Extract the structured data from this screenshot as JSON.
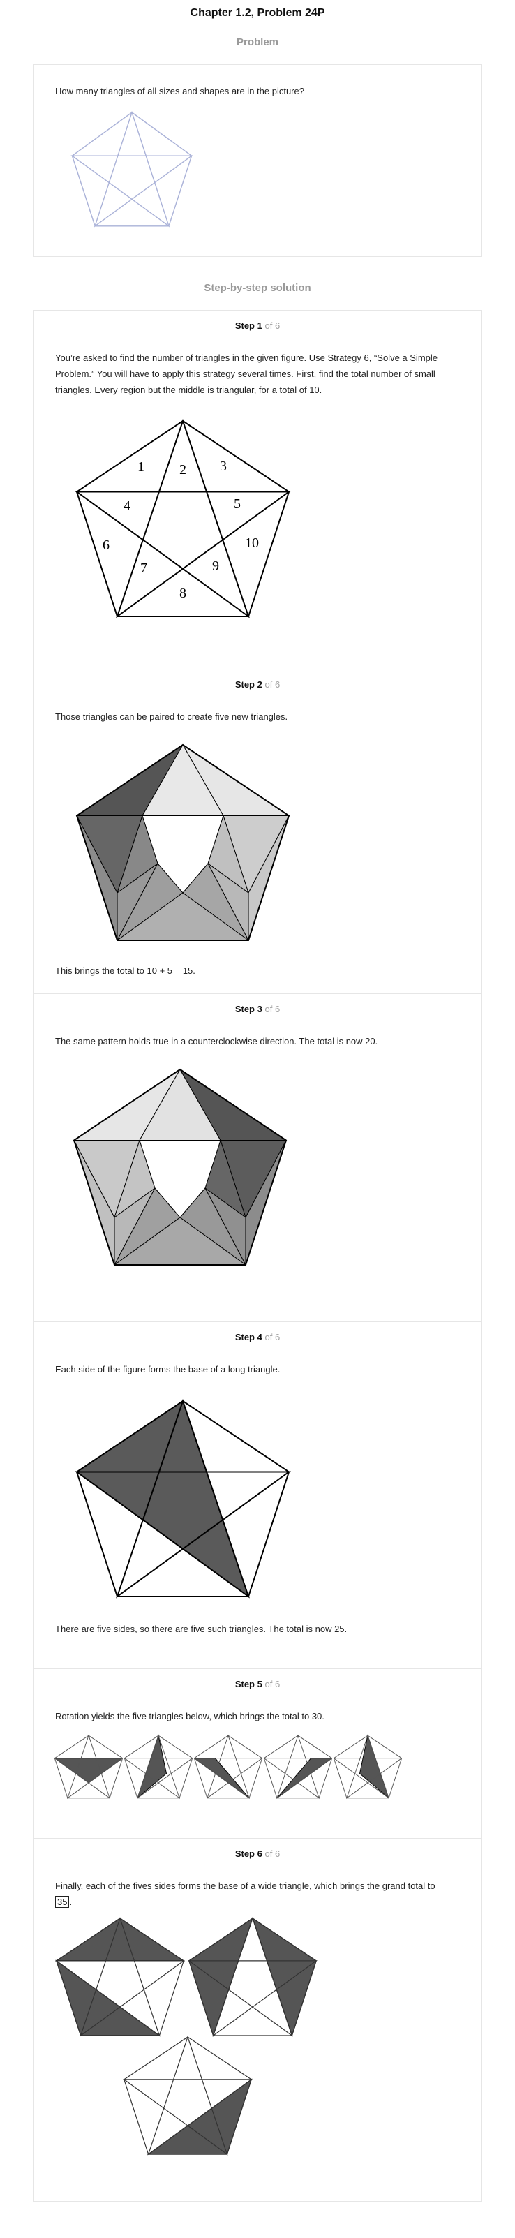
{
  "chapter_title": "Chapter 1.2, Problem 24P",
  "problem": {
    "heading": "Problem",
    "text": "How many triangles of all sizes and shapes are in the picture?"
  },
  "solution": {
    "heading": "Step-by-step solution",
    "steps": [
      {
        "word": "Step",
        "number": "1",
        "of": "of 6",
        "text": "You’re asked to find the number of triangles in the given figure. Use Strategy 6, “Solve a Simple Problem.” You will have to apply this strategy several times. First, find the total number of small triangles. Every region but the middle is triangular, for a total of 10.",
        "labels": [
          "1",
          "2",
          "3",
          "4",
          "5",
          "6",
          "7",
          "8",
          "9",
          "10"
        ]
      },
      {
        "word": "Step",
        "number": "2",
        "of": "of 6",
        "text": "Those triangles can be paired to create five new triangles.",
        "text_after": "This brings the total to 10 + 5 = 15."
      },
      {
        "word": "Step",
        "number": "3",
        "of": "of 6",
        "text": "The same pattern holds true in a counterclockwise direction. The total is now 20."
      },
      {
        "word": "Step",
        "number": "4",
        "of": "of 6",
        "text": "Each side of the figure forms the base of a long triangle.",
        "text_after": "There are five sides, so there are five such triangles. The total is now 25."
      },
      {
        "word": "Step",
        "number": "5",
        "of": "of 6",
        "text": "Rotation yields the five triangles below, which brings the total to 30."
      },
      {
        "word": "Step",
        "number": "6",
        "of": "of 6",
        "text": "Finally, each of the fives sides forms the base of a wide triangle, which brings the grand total to",
        "answer": "35",
        "text_end": "."
      }
    ]
  }
}
